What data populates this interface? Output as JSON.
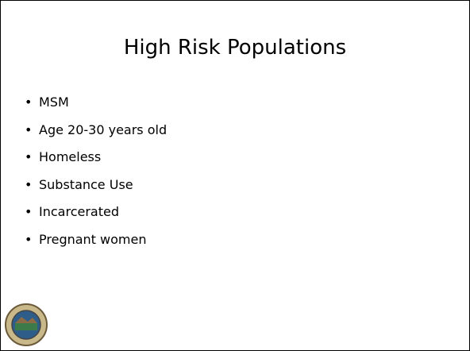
{
  "slide": {
    "title": "High Risk Populations",
    "bullets": [
      "MSM",
      "Age 20-30 years old",
      "Homeless",
      "Substance Use",
      "Incarcerated",
      "Pregnant women"
    ]
  }
}
